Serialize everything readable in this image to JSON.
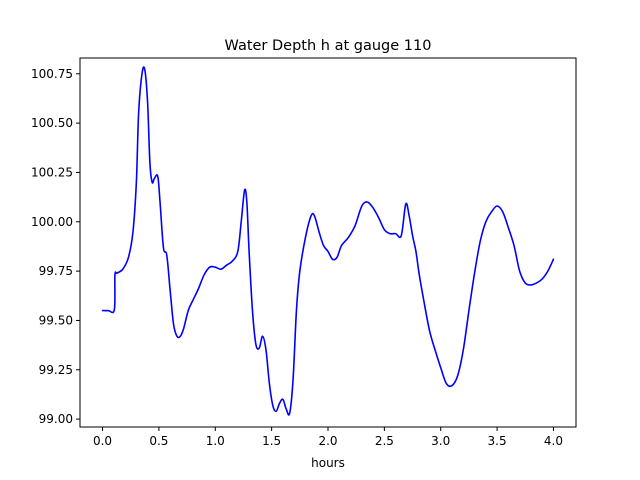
{
  "chart_data": {
    "type": "line",
    "title": "Water Depth h at gauge 110",
    "xlabel": "hours",
    "ylabel": "",
    "xlim": [
      -0.2,
      4.2
    ],
    "ylim": [
      98.96,
      100.83
    ],
    "grid": false,
    "xticks": [
      0.0,
      0.5,
      1.0,
      1.5,
      2.0,
      2.5,
      3.0,
      3.5,
      4.0
    ],
    "xtick_labels": [
      "0.0",
      "0.5",
      "1.0",
      "1.5",
      "2.0",
      "2.5",
      "3.0",
      "3.5",
      "4.0"
    ],
    "yticks": [
      99.0,
      99.25,
      99.5,
      99.75,
      100.0,
      100.25,
      100.5,
      100.75
    ],
    "ytick_labels": [
      "99.00",
      "99.25",
      "99.50",
      "99.75",
      "100.00",
      "100.25",
      "100.50",
      "100.75"
    ],
    "series": [
      {
        "color": "#0000ff",
        "x": [
          0.0,
          0.05,
          0.105,
          0.11,
          0.13,
          0.18,
          0.23,
          0.27,
          0.3,
          0.32,
          0.35,
          0.375,
          0.4,
          0.42,
          0.44,
          0.46,
          0.49,
          0.51,
          0.54,
          0.57,
          0.6,
          0.63,
          0.66,
          0.69,
          0.72,
          0.76,
          0.8,
          0.85,
          0.9,
          0.95,
          1.0,
          1.05,
          1.1,
          1.15,
          1.2,
          1.23,
          1.26,
          1.28,
          1.3,
          1.33,
          1.36,
          1.39,
          1.42,
          1.45,
          1.48,
          1.51,
          1.54,
          1.57,
          1.6,
          1.63,
          1.66,
          1.69,
          1.72,
          1.75,
          1.8,
          1.85,
          1.88,
          1.92,
          1.96,
          2.0,
          2.04,
          2.08,
          2.12,
          2.18,
          2.24,
          2.3,
          2.35,
          2.4,
          2.45,
          2.5,
          2.55,
          2.6,
          2.65,
          2.69,
          2.72,
          2.75,
          2.78,
          2.81,
          2.85,
          2.9,
          2.95,
          3.0,
          3.05,
          3.1,
          3.15,
          3.2,
          3.25,
          3.3,
          3.35,
          3.4,
          3.45,
          3.5,
          3.55,
          3.6,
          3.65,
          3.7,
          3.75,
          3.8,
          3.85,
          3.9,
          3.95,
          4.0
        ],
        "y": [
          99.55,
          99.55,
          99.555,
          99.73,
          99.74,
          99.76,
          99.82,
          99.95,
          100.2,
          100.55,
          100.75,
          100.77,
          100.6,
          100.3,
          100.2,
          100.22,
          100.23,
          100.1,
          99.87,
          99.83,
          99.65,
          99.48,
          99.42,
          99.42,
          99.46,
          99.55,
          99.6,
          99.66,
          99.73,
          99.77,
          99.77,
          99.76,
          99.78,
          99.8,
          99.85,
          100.0,
          100.16,
          100.1,
          99.85,
          99.55,
          99.38,
          99.36,
          99.42,
          99.35,
          99.18,
          99.07,
          99.04,
          99.08,
          99.1,
          99.05,
          99.03,
          99.2,
          99.55,
          99.75,
          99.92,
          100.03,
          100.03,
          99.95,
          99.88,
          99.85,
          99.81,
          99.82,
          99.88,
          99.92,
          99.98,
          100.08,
          100.1,
          100.07,
          100.02,
          99.96,
          99.94,
          99.94,
          99.93,
          100.09,
          100.03,
          99.93,
          99.85,
          99.73,
          99.6,
          99.45,
          99.35,
          99.26,
          99.18,
          99.17,
          99.22,
          99.35,
          99.55,
          99.74,
          99.9,
          100.0,
          100.05,
          100.08,
          100.05,
          99.97,
          99.88,
          99.75,
          99.69,
          99.68,
          99.69,
          99.71,
          99.75,
          99.81
        ]
      }
    ]
  }
}
